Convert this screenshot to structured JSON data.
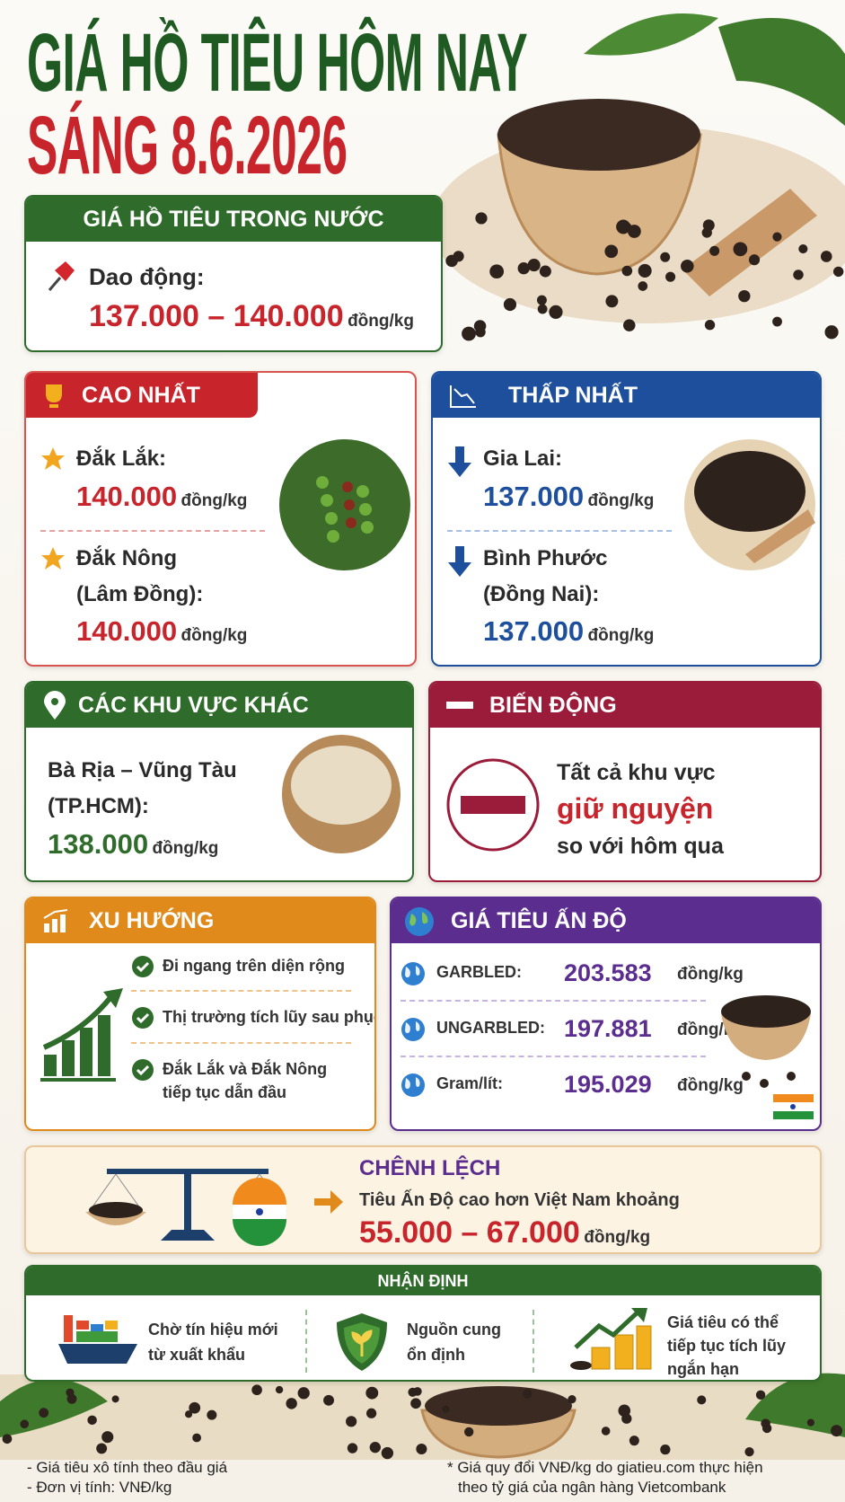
{
  "header": {
    "title": "GIÁ HỒ TIÊU HÔM NAY",
    "subtitle": "SÁNG 8.6.2026"
  },
  "domestic": {
    "title": "GIÁ HỒ TIÊU TRONG NƯỚC",
    "label": "Dao động:",
    "price": "137.000 – 140.000",
    "unit": "đồng/kg"
  },
  "highest": {
    "title": "CAO NHẤT",
    "items": [
      {
        "region": [
          "Đắk Lắk:"
        ],
        "price": "140.000",
        "unit": "đồng/kg"
      },
      {
        "region": [
          "Đắk Nông",
          "(Lâm Đồng):"
        ],
        "price": "140.000",
        "unit": "đồng/kg"
      }
    ]
  },
  "lowest": {
    "title": "THẤP NHẤT",
    "items": [
      {
        "region": [
          "Gia Lai:"
        ],
        "price": "137.000",
        "unit": "đồng/kg"
      },
      {
        "region": [
          "Bình Phước",
          "(Đồng Nai):"
        ],
        "price": "137.000",
        "unit": "đồng/kg"
      }
    ]
  },
  "other_regions": {
    "title": "CÁC KHU VỰC KHÁC",
    "region": [
      "Bà Rịa – Vũng Tàu",
      "(TP.HCM):"
    ],
    "price": "138.000",
    "unit": "đồng/kg"
  },
  "change": {
    "title": "BIẾN ĐỘNG",
    "lines": [
      "Tất cả khu vực",
      "giữ nguyện",
      "so với hôm qua"
    ]
  },
  "trend": {
    "title": "XU HƯỚNG",
    "items": [
      [
        "Đi ngang trên diện rộng"
      ],
      [
        "Thị trường tích lũy sau phục hồi"
      ],
      [
        "Đắk Lắk và Đắk Nông",
        "tiếp tục dẫn đầu"
      ]
    ]
  },
  "india": {
    "title": "GIÁ TIÊU ẤN ĐỘ",
    "rows": [
      {
        "label": "GARBLED:",
        "price": "203.583",
        "unit": "đồng/kg"
      },
      {
        "label": "UNGARBLED:",
        "price": "197.881",
        "unit": "đồng/kg"
      },
      {
        "label": "Gram/lít:",
        "price": "195.029",
        "unit": "đồng/kg"
      }
    ]
  },
  "difference": {
    "title": "CHÊNH LỆCH",
    "text": "Tiêu Ấn Độ cao hơn Việt Nam khoảng",
    "price": "55.000 – 67.000",
    "unit": "đồng/kg"
  },
  "assessment": {
    "title": "NHẬN ĐỊNH",
    "items": [
      [
        "Chờ tín hiệu mới",
        "từ xuất khẩu"
      ],
      [
        "Nguồn cung",
        "ổn định"
      ],
      [
        "Giá tiêu có thể",
        "tiếp tục tích lũy",
        "ngắn hạn"
      ]
    ]
  },
  "footer": {
    "notes_left": [
      "- Giá tiêu xô tính theo đầu giá",
      "- Đơn vị tính: VNĐ/kg"
    ],
    "notes_right": [
      "* Giá quy đổi VNĐ/kg do giatieu.com thực hiện",
      "theo tỷ giá của ngân hàng Vietcombank"
    ]
  }
}
